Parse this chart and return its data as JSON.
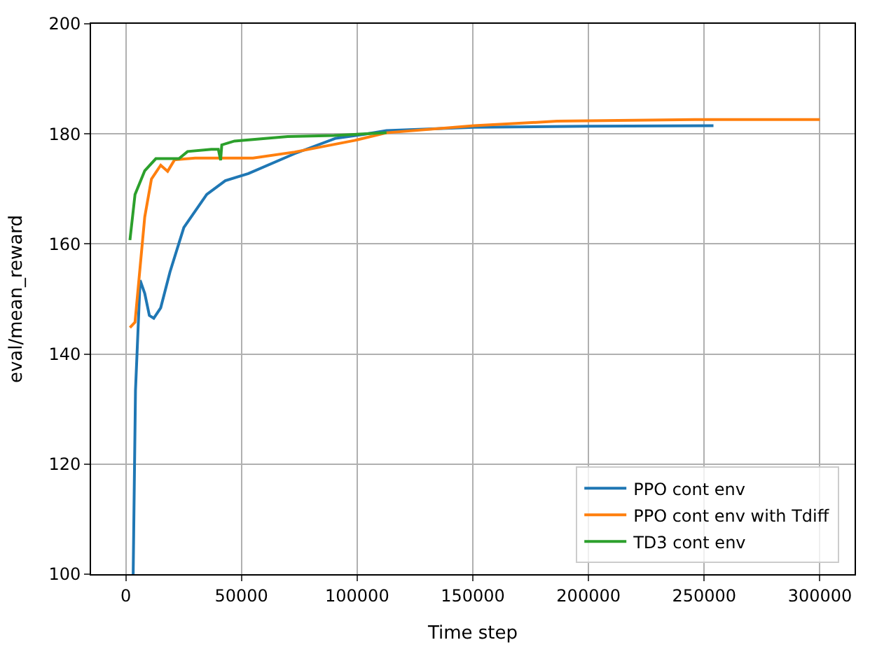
{
  "chart_data": {
    "type": "line",
    "xlabel": "Time step",
    "ylabel": "eval/mean_reward",
    "xlim": [
      -15000,
      315000
    ],
    "ylim": [
      100,
      200
    ],
    "xticks": [
      0,
      50000,
      100000,
      150000,
      200000,
      250000,
      300000
    ],
    "yticks": [
      100,
      120,
      140,
      160,
      180,
      200
    ],
    "grid": true,
    "legend": "bottom right",
    "marker": "none",
    "line_style": "solid",
    "series": [
      {
        "name": "PPO cont env",
        "color": "#1f77b4",
        "x": [
          3200,
          4200,
          6200,
          8200,
          10200,
          12100,
          15100,
          19100,
          25100,
          35000,
          43000,
          53000,
          72900,
          90800,
          102700,
          112700,
          150500,
          200000,
          254000
        ],
        "values": [
          100,
          133.4,
          153.4,
          151,
          147,
          146.5,
          148.4,
          154.9,
          163,
          169,
          171.5,
          172.8,
          176.4,
          179.2,
          179.9,
          180.6,
          181.2,
          181.4,
          181.5
        ]
      },
      {
        "name": "PPO cont env with Tdiff",
        "color": "#ff7f0e",
        "x": [
          1800,
          4000,
          8200,
          11100,
          15100,
          18100,
          21100,
          30000,
          55000,
          73000,
          98800,
          112700,
          150500,
          186400,
          246000,
          300000
        ],
        "values": [
          144.8,
          145.8,
          164.9,
          171.8,
          174.3,
          173.2,
          175.3,
          175.6,
          175.6,
          176.7,
          178.8,
          180.2,
          181.5,
          182.3,
          182.6,
          182.6
        ]
      },
      {
        "name": "TD3 cont env",
        "color": "#2ca02c",
        "x": [
          1800,
          4000,
          8200,
          13000,
          23000,
          26700,
          37000,
          40000,
          41000,
          41500,
          47000,
          70000,
          90000,
          102700,
          112700
        ],
        "values": [
          160.7,
          169,
          173.3,
          175.5,
          175.5,
          176.8,
          177.2,
          177.2,
          175.2,
          178,
          178.7,
          179.5,
          179.7,
          180,
          180.2
        ]
      }
    ]
  }
}
